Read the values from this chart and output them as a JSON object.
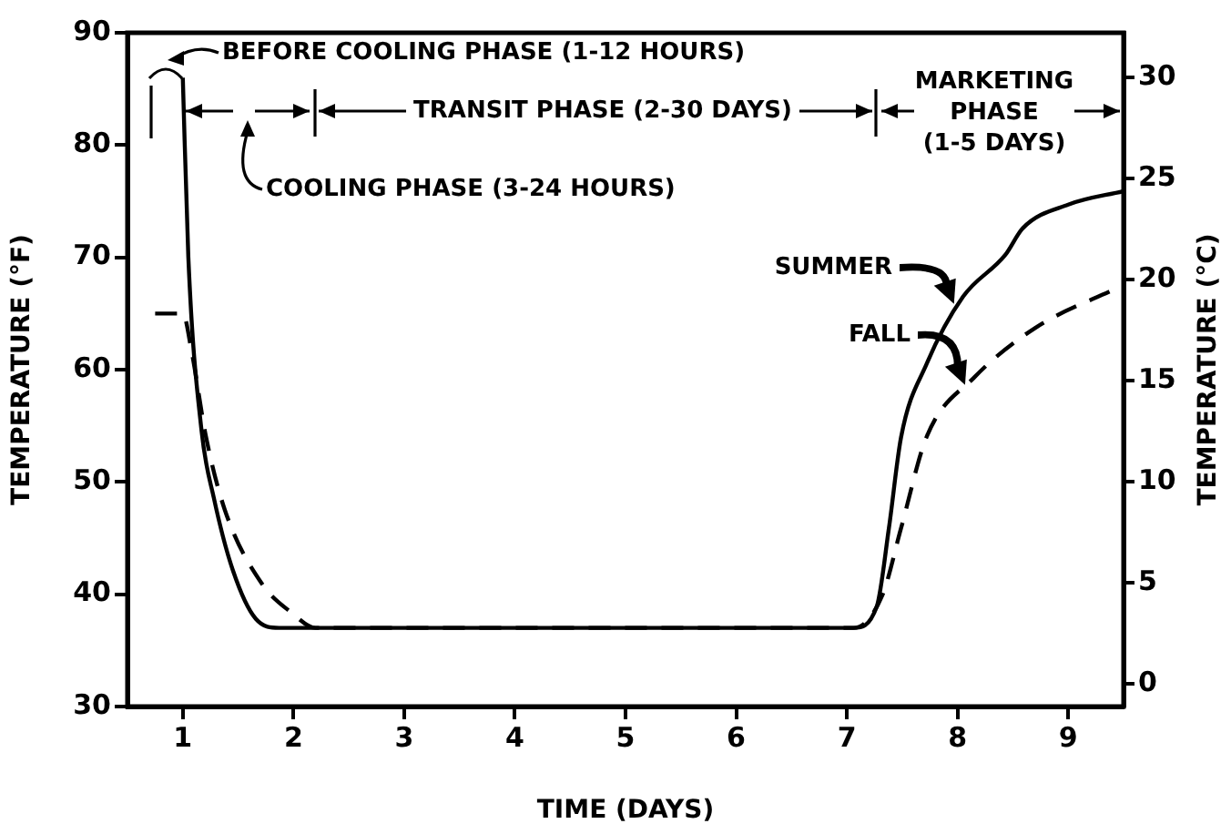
{
  "chart_data": {
    "type": "line",
    "xlabel": "TIME (DAYS)",
    "ylabel": "TEMPERATURE (°F)",
    "y2label": "TEMPERATURE (°C)",
    "xlim": [
      0.5,
      9.5
    ],
    "xticks": [
      1,
      2,
      3,
      4,
      5,
      6,
      7,
      8,
      9
    ],
    "ylim": [
      30,
      90
    ],
    "yticks": [
      30,
      40,
      50,
      60,
      70,
      80,
      90
    ],
    "y2lim": [
      -1.11,
      32.22
    ],
    "y2ticks": [
      0,
      5,
      10,
      15,
      20,
      25,
      30
    ],
    "grid": false,
    "legend": "right",
    "marker": "none",
    "series": [
      {
        "name": "SUMMER",
        "color": "#000000",
        "line_style": "solid",
        "x": [
          1.0,
          1.05,
          1.17,
          1.28,
          1.45,
          1.66,
          1.87,
          2.2,
          3,
          4,
          5,
          6,
          7.06,
          7.27,
          7.38,
          7.49,
          7.72,
          8.05,
          8.43,
          8.59,
          9.0,
          9.5
        ],
        "values": [
          86,
          70,
          54.5,
          48.6,
          42.2,
          37.8,
          37,
          37,
          37,
          37,
          37,
          37,
          37,
          38.9,
          45.9,
          54,
          60.5,
          66.5,
          70.2,
          72.6,
          74.7,
          75.9
        ]
      },
      {
        "name": "FALL",
        "color": "#000000",
        "line_style": "dashed",
        "x": [
          0.75,
          1.0,
          1.08,
          1.21,
          1.38,
          1.71,
          1.99,
          2.2,
          7.06,
          7.32,
          7.49,
          7.72,
          8.15,
          8.7,
          9.47
        ],
        "values": [
          65,
          65,
          61.6,
          54,
          47.5,
          41,
          38.3,
          37,
          37,
          39.9,
          45.9,
          54,
          59.3,
          63.7,
          67.4
        ]
      }
    ],
    "annotations": [
      "BEFORE COOLING PHASE (1-12 HOURS)",
      "COOLING PHASE (3-24 HOURS)",
      "TRANSIT PHASE (2-30 DAYS)",
      "MARKETING PHASE (1-5 DAYS)"
    ]
  }
}
